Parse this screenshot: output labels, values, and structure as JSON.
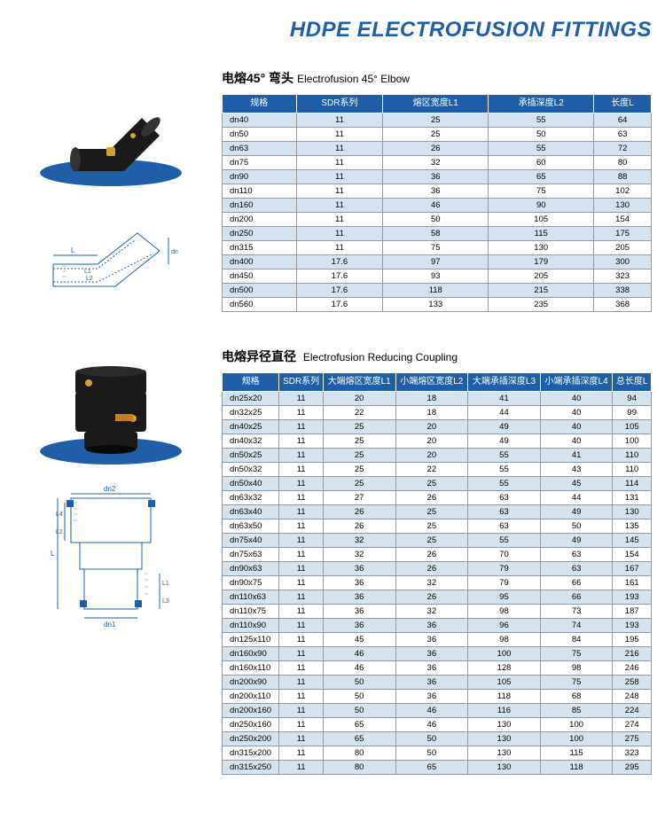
{
  "page_title": "HDPE ELECTROFUSION FITTINGS",
  "section1": {
    "title_cn": "电熔45° 弯头",
    "title_en": "Electrofusion 45° Elbow",
    "columns": [
      "规格",
      "SDR系列",
      "熔区宽度L1",
      "承插深度L2",
      "长度L"
    ],
    "rows": [
      [
        "dn40",
        "11",
        "25",
        "55",
        "64"
      ],
      [
        "dn50",
        "11",
        "25",
        "50",
        "63"
      ],
      [
        "dn63",
        "11",
        "26",
        "55",
        "72"
      ],
      [
        "dn75",
        "11",
        "32",
        "60",
        "80"
      ],
      [
        "dn90",
        "11",
        "36",
        "65",
        "88"
      ],
      [
        "dn110",
        "11",
        "36",
        "75",
        "102"
      ],
      [
        "dn160",
        "11",
        "46",
        "90",
        "130"
      ],
      [
        "dn200",
        "11",
        "50",
        "105",
        "154"
      ],
      [
        "dn250",
        "11",
        "58",
        "115",
        "175"
      ],
      [
        "dn315",
        "11",
        "75",
        "130",
        "205"
      ],
      [
        "dn400",
        "17.6",
        "97",
        "179",
        "300"
      ],
      [
        "dn450",
        "17.6",
        "93",
        "205",
        "323"
      ],
      [
        "dn500",
        "17.6",
        "118",
        "215",
        "338"
      ],
      [
        "dn560",
        "17.6",
        "133",
        "235",
        "368"
      ]
    ]
  },
  "section2": {
    "title_cn": "电熔异径直径",
    "title_en": "Electrofusion Reducing Coupling",
    "columns": [
      "规格",
      "SDR系列",
      "大端熔区宽度L1",
      "小端熔区宽度L2",
      "大端承插深度L3",
      "小端承插深度L4",
      "总长度L"
    ],
    "rows": [
      [
        "dn25x20",
        "11",
        "20",
        "18",
        "41",
        "40",
        "94"
      ],
      [
        "dn32x25",
        "11",
        "22",
        "18",
        "44",
        "40",
        "99"
      ],
      [
        "dn40x25",
        "11",
        "25",
        "20",
        "49",
        "40",
        "105"
      ],
      [
        "dn40x32",
        "11",
        "25",
        "20",
        "49",
        "40",
        "100"
      ],
      [
        "dn50x25",
        "11",
        "25",
        "20",
        "55",
        "41",
        "110"
      ],
      [
        "dn50x32",
        "11",
        "25",
        "22",
        "55",
        "43",
        "110"
      ],
      [
        "dn50x40",
        "11",
        "25",
        "25",
        "55",
        "45",
        "114"
      ],
      [
        "dn63x32",
        "11",
        "27",
        "26",
        "63",
        "44",
        "131"
      ],
      [
        "dn63x40",
        "11",
        "26",
        "25",
        "63",
        "49",
        "130"
      ],
      [
        "dn63x50",
        "11",
        "26",
        "25",
        "63",
        "50",
        "135"
      ],
      [
        "dn75x40",
        "11",
        "32",
        "25",
        "55",
        "49",
        "145"
      ],
      [
        "dn75x63",
        "11",
        "32",
        "26",
        "70",
        "63",
        "154"
      ],
      [
        "dn90x63",
        "11",
        "36",
        "26",
        "79",
        "63",
        "167"
      ],
      [
        "dn90x75",
        "11",
        "36",
        "32",
        "79",
        "66",
        "161"
      ],
      [
        "dn110x63",
        "11",
        "36",
        "26",
        "95",
        "66",
        "193"
      ],
      [
        "dn110x75",
        "11",
        "36",
        "32",
        "98",
        "73",
        "187"
      ],
      [
        "dn110x90",
        "11",
        "36",
        "36",
        "96",
        "74",
        "193"
      ],
      [
        "dn125x110",
        "11",
        "45",
        "36",
        "98",
        "84",
        "195"
      ],
      [
        "dn160x90",
        "11",
        "46",
        "36",
        "100",
        "75",
        "216"
      ],
      [
        "dn160x110",
        "11",
        "46",
        "36",
        "128",
        "98",
        "246"
      ],
      [
        "dn200x90",
        "11",
        "50",
        "36",
        "105",
        "75",
        "258"
      ],
      [
        "dn200x110",
        "11",
        "50",
        "36",
        "118",
        "68",
        "248"
      ],
      [
        "dn200x160",
        "11",
        "50",
        "46",
        "116",
        "85",
        "224"
      ],
      [
        "dn250x160",
        "11",
        "65",
        "46",
        "130",
        "100",
        "274"
      ],
      [
        "dn250x200",
        "11",
        "65",
        "50",
        "130",
        "100",
        "275"
      ],
      [
        "dn315x200",
        "11",
        "80",
        "50",
        "130",
        "115",
        "323"
      ],
      [
        "dn315x250",
        "11",
        "80",
        "65",
        "130",
        "118",
        "295"
      ]
    ]
  },
  "colors": {
    "brand_blue": "#1e5fa8",
    "alt_row": "#d5e3f0",
    "border": "#999999"
  }
}
